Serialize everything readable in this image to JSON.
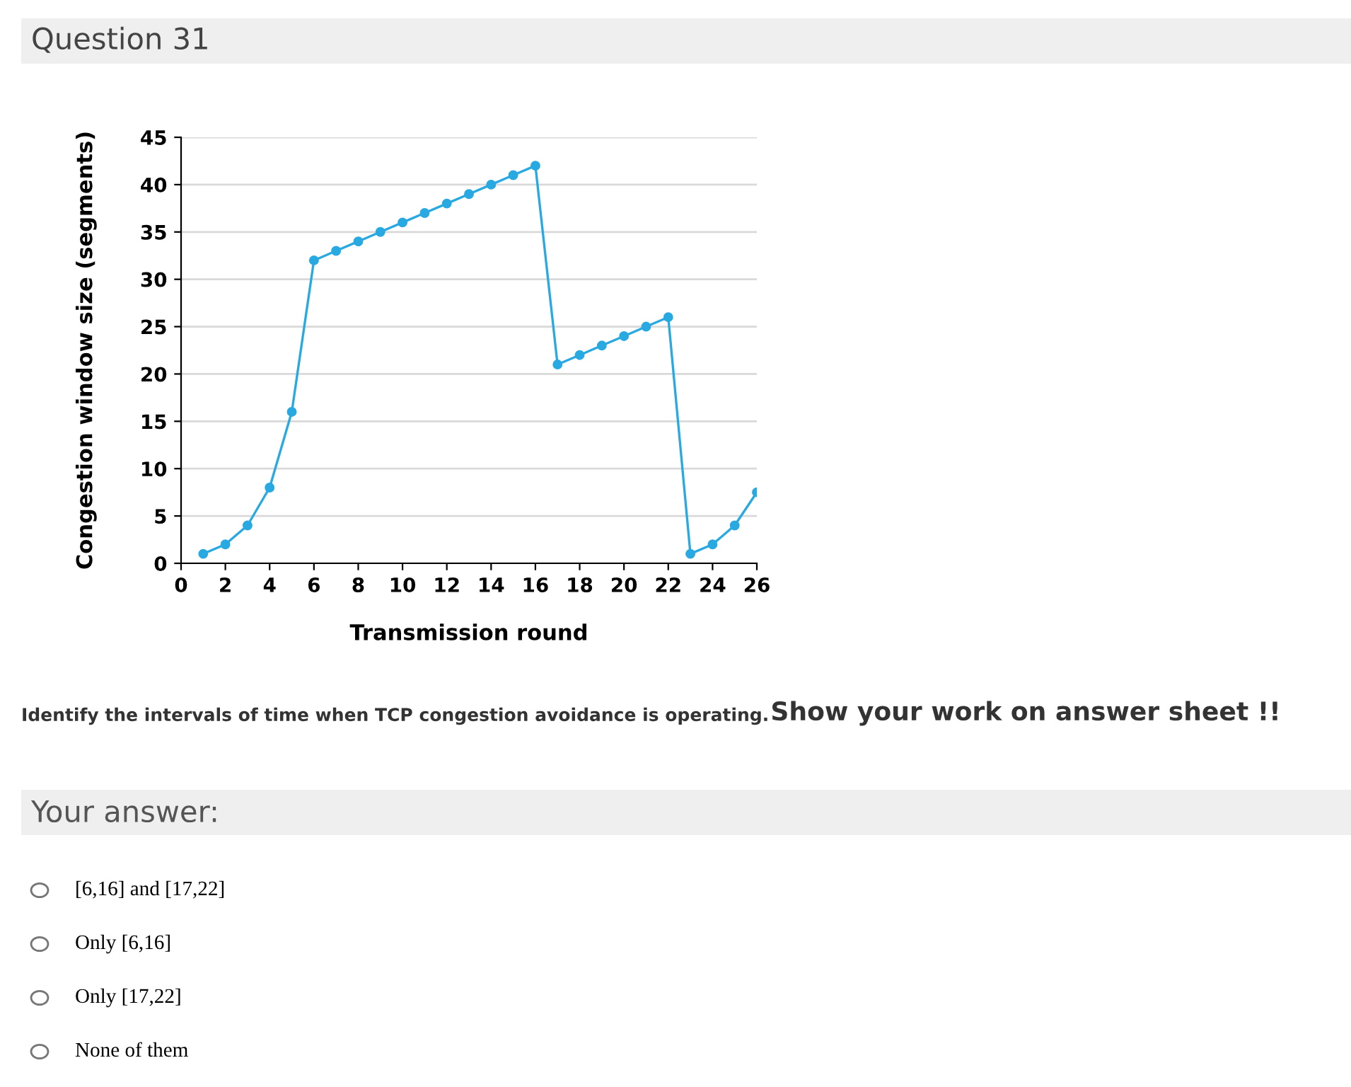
{
  "chart_data": {
    "type": "line",
    "title": "Question 31",
    "xlabel": "Transmission round",
    "ylabel": "Congestion window size (segments)",
    "x": [
      1,
      2,
      3,
      4,
      5,
      6,
      7,
      8,
      9,
      10,
      11,
      12,
      13,
      14,
      15,
      16,
      17,
      18,
      19,
      20,
      21,
      22,
      23,
      24,
      25,
      26
    ],
    "series": [
      {
        "color": "#29a9e1",
        "values": [
          1,
          2,
          4,
          8,
          16,
          32,
          33,
          34,
          35,
          36,
          37,
          38,
          39,
          40,
          41,
          42,
          21,
          22,
          23,
          24,
          25,
          26,
          1,
          2,
          4,
          7.5
        ]
      }
    ],
    "xlim": [
      0,
      26
    ],
    "xticks": [
      0,
      2,
      4,
      6,
      8,
      10,
      12,
      14,
      16,
      18,
      20,
      22,
      24,
      26
    ],
    "ylim": [
      0,
      45
    ],
    "yticks": [
      0,
      5,
      10,
      15,
      20,
      25,
      30,
      35,
      40,
      45
    ],
    "grid": "y",
    "marker": "circle",
    "line_style": "solid",
    "legend": false,
    "annotations": [
      "Identify the intervals of time when TCP congestion avoidance is operating.",
      "Show your work on answer sheet !!",
      "Your answer:",
      "[6,16] and [17,22]",
      "Only [6,16]",
      "Only [17,22]",
      "None of them"
    ]
  }
}
